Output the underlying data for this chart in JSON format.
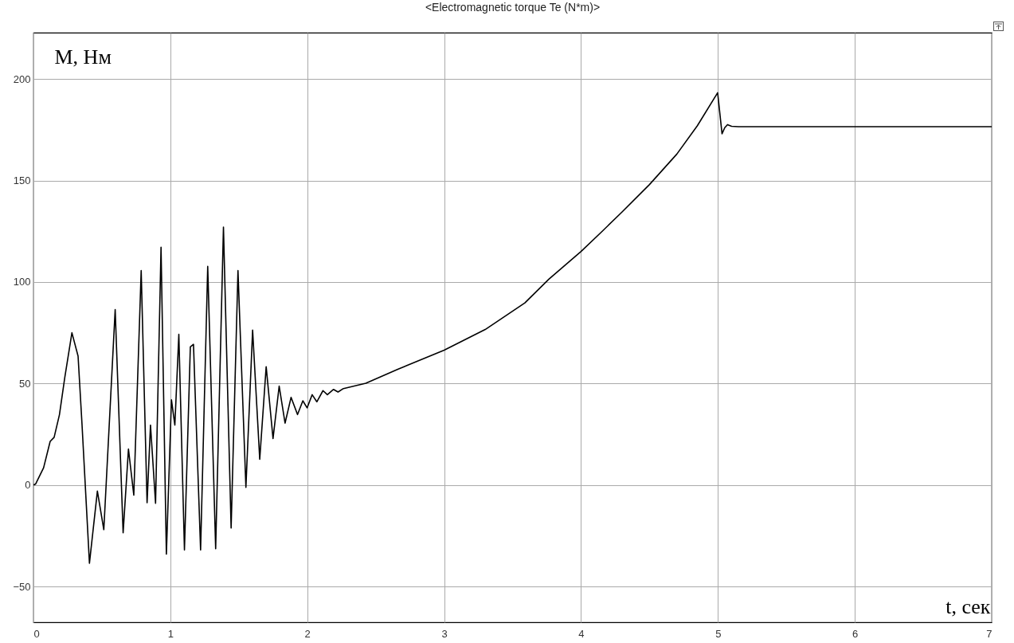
{
  "chart_data": {
    "type": "line",
    "title": "<Electromagnetic torque Te (N*m)>",
    "xlabel": "t, сек",
    "ylabel": "M, Нм",
    "x": [
      0,
      0.016,
      0.074,
      0.122,
      0.151,
      0.19,
      0.229,
      0.281,
      0.326,
      0.355,
      0.409,
      0.467,
      0.514,
      0.597,
      0.655,
      0.694,
      0.733,
      0.787,
      0.83,
      0.855,
      0.892,
      0.932,
      0.971,
      1.008,
      1.033,
      1.062,
      1.103,
      1.146,
      1.169,
      1.221,
      1.273,
      1.331,
      1.388,
      1.444,
      1.494,
      1.552,
      1.601,
      1.653,
      1.7,
      1.75,
      1.795,
      1.838,
      1.882,
      1.929,
      1.968,
      1.999,
      2.036,
      2.07,
      2.115,
      2.147,
      2.192,
      2.225,
      2.264,
      2.428,
      2.661,
      3.0,
      3.3,
      3.59,
      3.765,
      4.0,
      4.155,
      4.3,
      4.5,
      4.7,
      4.85,
      4.998,
      5.03,
      5.05,
      5.07,
      5.1,
      5.15,
      7
    ],
    "values": [
      0,
      0.5,
      8.5,
      21.5,
      23.5,
      34.7,
      53,
      75,
      63.5,
      29.5,
      -38.5,
      -3,
      -22,
      86.4,
      -23.5,
      17.7,
      -5,
      105.6,
      -8.7,
      29.5,
      -9,
      117.1,
      -34,
      42,
      29.5,
      74.2,
      -32,
      68,
      69.3,
      -32,
      107.7,
      -31.4,
      127,
      -21.2,
      105.6,
      -1.2,
      76.3,
      12.7,
      58.3,
      22.9,
      48.7,
      30.5,
      43.2,
      34.7,
      41.5,
      38,
      44.5,
      41,
      46.5,
      44.5,
      47.1,
      45.8,
      47.5,
      50.1,
      57,
      66.4,
      76.6,
      89.7,
      101.4,
      115,
      125,
      134.5,
      148,
      163,
      177,
      193.2,
      173,
      176,
      177.5,
      176.7,
      176.5,
      176.5
    ],
    "color": "#000000",
    "line_style": "solid",
    "xlim": [
      0,
      7
    ],
    "ylim": [
      -67.6,
      222.8
    ],
    "xticks": [
      0,
      1,
      2,
      3,
      4,
      5,
      6,
      7
    ],
    "yticks": [
      -50,
      0,
      50,
      100,
      150,
      200
    ],
    "grid": true
  }
}
